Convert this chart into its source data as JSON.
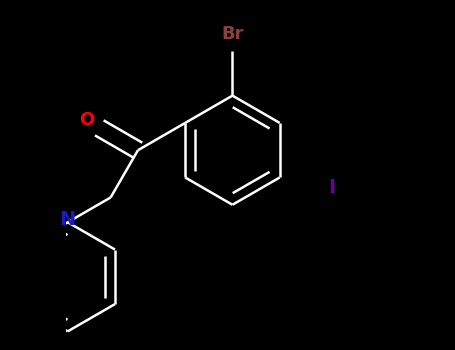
{
  "background_color": "#000000",
  "bond_color": "#ffffff",
  "bond_width": 1.8,
  "br_color": "#8b4040",
  "o_color": "#ff0000",
  "n_color": "#1a1acd",
  "i_color": "#660099",
  "br_label": "Br",
  "o_label": "O",
  "n_label": "N",
  "i_label": "I",
  "label_fontsize": 13
}
